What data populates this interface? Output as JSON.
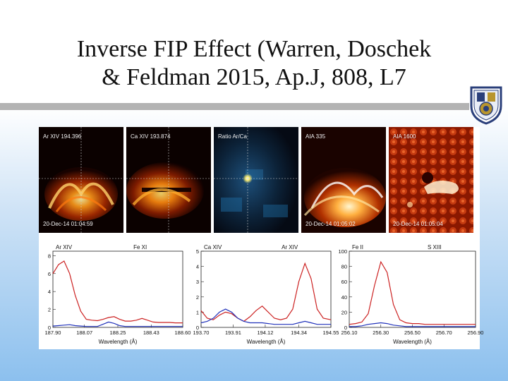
{
  "slide": {
    "title_line1": "Inverse FIP Effect (Warren, Doschek",
    "title_line2": "& Feldman 2015, Ap.J, 808, L7"
  },
  "logo": {
    "icon": "crest-icon",
    "color": "#2a3f7a"
  },
  "images": [
    {
      "label": "Ar XIV 194.396",
      "timestamp": "20-Dec-14 01:04:59",
      "colormap": "hot"
    },
    {
      "label": "Ca XIV 193.874",
      "timestamp": "",
      "colormap": "hot"
    },
    {
      "label": "Ratio Ar/Ca",
      "timestamp": "",
      "colormap": "blue"
    },
    {
      "label": "AIA 335",
      "timestamp": "20-Dec-14 01:05:02",
      "colormap": "hot"
    },
    {
      "label": "AIA 1600",
      "timestamp": "20-Dec-14 01:05:04",
      "colormap": "red"
    }
  ],
  "chart_data": [
    {
      "type": "line",
      "xlabel": "Wavelength (Å)",
      "line_labels": [
        "Ar XIV",
        "Fe XI"
      ],
      "xticks": [
        "187.90",
        "188.07",
        "188.25",
        "188.43",
        "188.60"
      ],
      "yticks": [
        "0",
        "2",
        "4",
        "6",
        "8"
      ],
      "xlim": [
        187.9,
        188.6
      ],
      "ylim": [
        0,
        8.5
      ],
      "series": [
        {
          "color": "#cc2222",
          "x": [
            187.9,
            187.93,
            187.96,
            187.99,
            188.02,
            188.05,
            188.08,
            188.11,
            188.14,
            188.17,
            188.2,
            188.23,
            188.26,
            188.29,
            188.32,
            188.35,
            188.38,
            188.41,
            188.44,
            188.47,
            188.5,
            188.53,
            188.56,
            188.6
          ],
          "values": [
            6.0,
            7.0,
            7.4,
            6.0,
            3.6,
            1.8,
            0.9,
            0.8,
            0.75,
            0.9,
            1.1,
            1.2,
            0.9,
            0.7,
            0.7,
            0.8,
            1.0,
            0.8,
            0.6,
            0.55,
            0.55,
            0.55,
            0.5,
            0.5
          ]
        },
        {
          "color": "#2233bb",
          "x": [
            187.9,
            187.93,
            187.96,
            187.99,
            188.02,
            188.05,
            188.08,
            188.11,
            188.14,
            188.17,
            188.2,
            188.23,
            188.26,
            188.29,
            188.32,
            188.35,
            188.38,
            188.41,
            188.44,
            188.47,
            188.5,
            188.53,
            188.56,
            188.6
          ],
          "values": [
            0.15,
            0.2,
            0.25,
            0.3,
            0.2,
            0.15,
            0.1,
            0.1,
            0.1,
            0.35,
            0.6,
            0.45,
            0.2,
            0.1,
            0.1,
            0.1,
            0.1,
            0.1,
            0.1,
            0.1,
            0.1,
            0.1,
            0.1,
            0.1
          ]
        }
      ]
    },
    {
      "type": "line",
      "xlabel": "Wavelength (Å)",
      "line_labels": [
        "Ca XIV",
        "Ar XIV"
      ],
      "xticks": [
        "193.70",
        "193.91",
        "194.12",
        "194.34",
        "194.55"
      ],
      "yticks": [
        "0",
        "1",
        "2",
        "3",
        "4",
        "5"
      ],
      "xlim": [
        193.7,
        194.55
      ],
      "ylim": [
        0,
        5
      ],
      "series": [
        {
          "color": "#cc2222",
          "x": [
            193.7,
            193.74,
            193.78,
            193.82,
            193.86,
            193.9,
            193.94,
            193.98,
            194.02,
            194.06,
            194.1,
            194.14,
            194.18,
            194.22,
            194.26,
            194.3,
            194.34,
            194.38,
            194.42,
            194.46,
            194.5,
            194.55
          ],
          "values": [
            1.1,
            0.6,
            0.5,
            0.8,
            1.0,
            0.9,
            0.6,
            0.4,
            0.7,
            1.1,
            1.4,
            1.0,
            0.6,
            0.5,
            0.6,
            1.2,
            3.0,
            4.2,
            3.2,
            1.2,
            0.6,
            0.5
          ]
        },
        {
          "color": "#2233bb",
          "x": [
            193.7,
            193.74,
            193.78,
            193.82,
            193.86,
            193.9,
            193.94,
            193.98,
            194.02,
            194.06,
            194.1,
            194.14,
            194.18,
            194.22,
            194.26,
            194.3,
            194.34,
            194.38,
            194.42,
            194.46,
            194.5,
            194.55
          ],
          "values": [
            0.3,
            0.4,
            0.6,
            1.0,
            1.2,
            1.0,
            0.6,
            0.4,
            0.3,
            0.3,
            0.3,
            0.25,
            0.2,
            0.2,
            0.2,
            0.2,
            0.3,
            0.4,
            0.3,
            0.2,
            0.2,
            0.2
          ]
        }
      ]
    },
    {
      "type": "line",
      "xlabel": "Wavelength (Å)",
      "line_labels": [
        "Fe II",
        "S XIII"
      ],
      "xticks": [
        "256.10",
        "256.30",
        "256.50",
        "256.70",
        "256.90"
      ],
      "yticks": [
        "0",
        "20",
        "40",
        "60",
        "80",
        "100"
      ],
      "xlim": [
        256.1,
        256.9
      ],
      "ylim": [
        0,
        100
      ],
      "series": [
        {
          "color": "#cc2222",
          "x": [
            256.1,
            256.14,
            256.18,
            256.22,
            256.26,
            256.3,
            256.34,
            256.38,
            256.42,
            256.46,
            256.5,
            256.54,
            256.58,
            256.62,
            256.66,
            256.7,
            256.74,
            256.78,
            256.82,
            256.86,
            256.9
          ],
          "values": [
            4,
            5,
            7,
            18,
            55,
            86,
            72,
            30,
            10,
            6,
            5,
            5,
            4,
            4,
            4,
            4,
            4,
            4,
            4,
            4,
            4
          ]
        },
        {
          "color": "#2233bb",
          "x": [
            256.1,
            256.14,
            256.18,
            256.22,
            256.26,
            256.3,
            256.34,
            256.38,
            256.42,
            256.46,
            256.5,
            256.54,
            256.58,
            256.62,
            256.66,
            256.7,
            256.74,
            256.78,
            256.82,
            256.86,
            256.9
          ],
          "values": [
            1,
            1,
            2,
            4,
            5,
            6,
            5,
            3,
            2,
            1,
            1,
            1,
            1,
            1,
            1,
            1,
            1,
            1,
            1,
            1,
            1
          ]
        }
      ]
    }
  ]
}
